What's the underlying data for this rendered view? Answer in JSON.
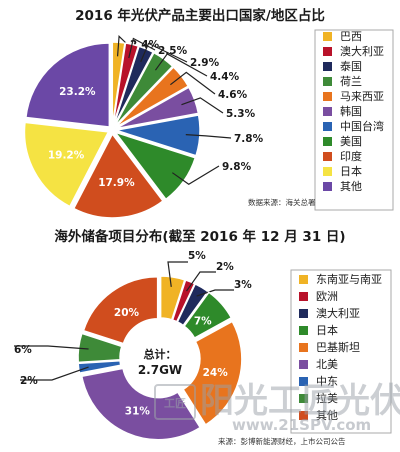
{
  "chart_data": [
    {
      "type": "pie",
      "title": "2016 年光伏产品主要出口国家/地区占比",
      "categories": [
        "巴西",
        "澳大利亚",
        "泰国",
        "荷兰",
        "马来西亚",
        "韩国",
        "中国台湾",
        "美国",
        "印度",
        "日本",
        "其他"
      ],
      "values": [
        2.4,
        2.5,
        2.9,
        4.4,
        4.6,
        5.3,
        7.8,
        9.8,
        17.9,
        19.2,
        23.2
      ],
      "labels": [
        "2.4%",
        "2.5%",
        "2.9%",
        "4.4%",
        "4.6%",
        "5.3%",
        "7.8%",
        "9.8%",
        "17.9%",
        "19.2%",
        "23.2%"
      ],
      "colors": [
        "#f0b325",
        "#b8122a",
        "#1f2a5c",
        "#3e8a38",
        "#e8741e",
        "#7a4ea0",
        "#2a63b3",
        "#2e8a2a",
        "#d04d1e",
        "#f5e343",
        "#6b48a6"
      ],
      "legend_position": "right",
      "source": "数据来源：海关总署"
    },
    {
      "type": "pie",
      "title": "海外储备项目分布(截至 2016 年 12 月 31 日)",
      "categories": [
        "东南亚与南亚",
        "欧洲",
        "澳大利亚",
        "日本",
        "巴基斯坦",
        "北美",
        "中东",
        "拉美",
        "其他"
      ],
      "values": [
        5,
        2,
        3,
        7,
        24,
        31,
        2,
        6,
        20
      ],
      "labels": [
        "5%",
        "2%",
        "3%",
        "7%",
        "24%",
        "31%",
        "2%",
        "6%",
        "20%"
      ],
      "colors": [
        "#f0b325",
        "#b8122a",
        "#1f2a5c",
        "#2e8a2a",
        "#e8741e",
        "#7a4ea0",
        "#2a63b3",
        "#3e8a38",
        "#d04d1e"
      ],
      "center_label": "总计：",
      "center_value": "2.7GW",
      "legend_position": "right",
      "source": "来源：彭博新能源财经，上市公司公告"
    }
  ],
  "watermark": {
    "text": "阳光工匠光伏网",
    "url": "www.21SPV.com",
    "logo_text": "工匠"
  }
}
